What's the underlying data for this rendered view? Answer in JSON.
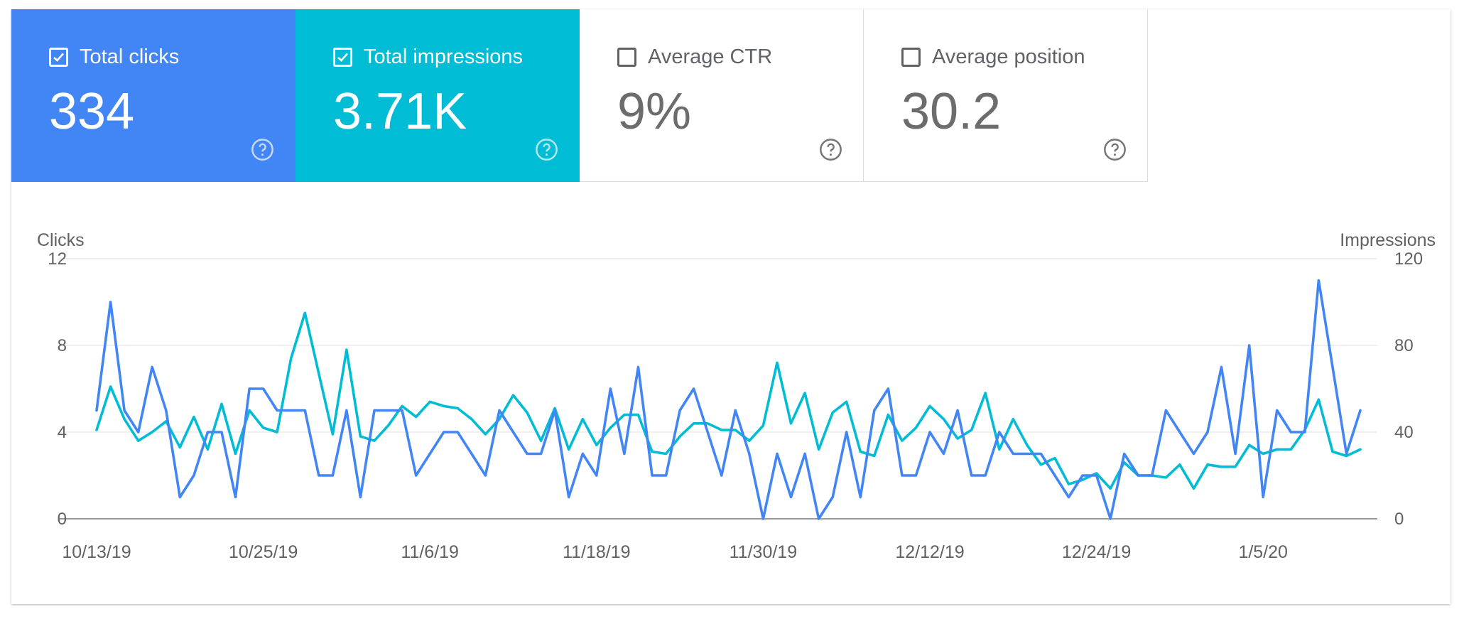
{
  "cards": [
    {
      "label": "Total clicks",
      "value": "334",
      "checked": true,
      "color": "#4285f4"
    },
    {
      "label": "Total impressions",
      "value": "3.71K",
      "checked": true,
      "color": "#00bcd4"
    },
    {
      "label": "Average CTR",
      "value": "9%",
      "checked": false,
      "color": "#ffffff"
    },
    {
      "label": "Average position",
      "value": "30.2",
      "checked": false,
      "color": "#ffffff"
    }
  ],
  "icons": {
    "checkbox_checked": "checkbox-checked-icon",
    "checkbox_empty": "checkbox-empty-icon",
    "help": "help-circle-icon"
  },
  "chart_data": {
    "type": "line",
    "left_axis_label": "Clicks",
    "right_axis_label": "Impressions",
    "left_ylim": [
      0,
      12
    ],
    "right_ylim": [
      0,
      120
    ],
    "left_ticks": [
      "0",
      "4",
      "8",
      "12"
    ],
    "right_ticks": [
      "0",
      "40",
      "80",
      "120"
    ],
    "x_tick_labels": [
      "10/13/19",
      "10/25/19",
      "11/6/19",
      "11/18/19",
      "11/30/19",
      "12/12/19",
      "12/24/19",
      "1/5/20"
    ],
    "x_tick_indices": [
      0,
      12,
      24,
      36,
      48,
      60,
      72,
      84
    ],
    "grid": true,
    "series": [
      {
        "name": "Clicks",
        "axis": "left",
        "color": "#4285f4",
        "values": [
          5,
          10,
          5,
          4,
          7,
          5,
          1,
          2,
          4,
          4,
          1,
          6,
          6,
          5,
          5,
          5,
          2,
          2,
          5,
          1,
          5,
          5,
          5,
          2,
          3,
          4,
          4,
          3,
          2,
          5,
          4,
          3,
          3,
          5,
          1,
          3,
          2,
          6,
          3,
          7,
          2,
          2,
          5,
          6,
          4,
          2,
          5,
          3,
          0,
          3,
          1,
          3,
          0,
          1,
          4,
          1,
          5,
          6,
          2,
          2,
          4,
          3,
          5,
          2,
          2,
          4,
          3,
          3,
          3,
          2,
          1,
          2,
          2,
          0,
          3,
          2,
          2,
          5,
          4,
          3,
          4,
          7,
          3,
          8,
          1,
          5,
          4,
          4,
          11,
          7,
          3,
          5
        ]
      },
      {
        "name": "Impressions",
        "axis": "right",
        "color": "#00bcd4",
        "values": [
          41,
          61,
          46,
          36,
          40,
          45,
          33,
          47,
          32,
          53,
          30,
          50,
          42,
          40,
          74,
          95,
          67,
          39,
          78,
          38,
          36,
          43,
          52,
          47,
          54,
          52,
          51,
          46,
          39,
          46,
          57,
          49,
          36,
          51,
          32,
          46,
          34,
          42,
          48,
          48,
          31,
          30,
          38,
          44,
          44,
          41,
          41,
          36,
          43,
          72,
          44,
          58,
          32,
          49,
          54,
          31,
          29,
          48,
          36,
          42,
          52,
          46,
          37,
          41,
          58,
          32,
          46,
          34,
          25,
          28,
          16,
          18,
          21,
          14,
          26,
          20,
          20,
          19,
          25,
          14,
          25,
          24,
          24,
          34,
          30,
          32,
          32,
          41,
          55,
          31,
          29,
          32
        ]
      }
    ]
  }
}
